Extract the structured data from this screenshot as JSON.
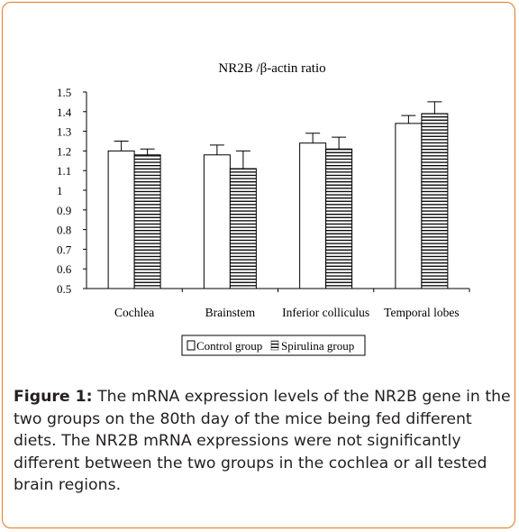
{
  "chart_data": {
    "type": "bar",
    "title": "NR2B /β-actin ratio",
    "xlabel": "",
    "ylabel": "",
    "ylim": [
      0.5,
      1.5
    ],
    "yticks": [
      "1.5",
      "1.4",
      "1.3",
      "1.2",
      "1.1",
      "1",
      "0.9",
      "0.8",
      "0.7",
      "0.6",
      "0.5"
    ],
    "categories": [
      "Cochlea",
      "Brainstem",
      "Inferior colliculus",
      "Temporal lobes"
    ],
    "series": [
      {
        "name": "Control group",
        "fill": "white",
        "values": [
          1.2,
          1.18,
          1.24,
          1.34
        ],
        "errors": [
          0.05,
          0.05,
          0.05,
          0.04
        ]
      },
      {
        "name": "Spirulina group",
        "fill": "horizontal-stripes",
        "values": [
          1.18,
          1.11,
          1.21,
          1.39
        ],
        "errors": [
          0.03,
          0.09,
          0.06,
          0.06
        ]
      }
    ],
    "legend_position": "bottom",
    "grid": false
  },
  "caption": {
    "label": "Figure 1:",
    "text": " The mRNA expression levels of the NR2B gene in the two groups on the 80th day of the mice being fed different diets. The NR2B mRNA expressions were not significantly different between the two groups in the cochlea or all tested brain regions."
  },
  "colors": {
    "frame_border": "#e07a1f",
    "bars": "#000000",
    "caption_text": "#231f20"
  }
}
